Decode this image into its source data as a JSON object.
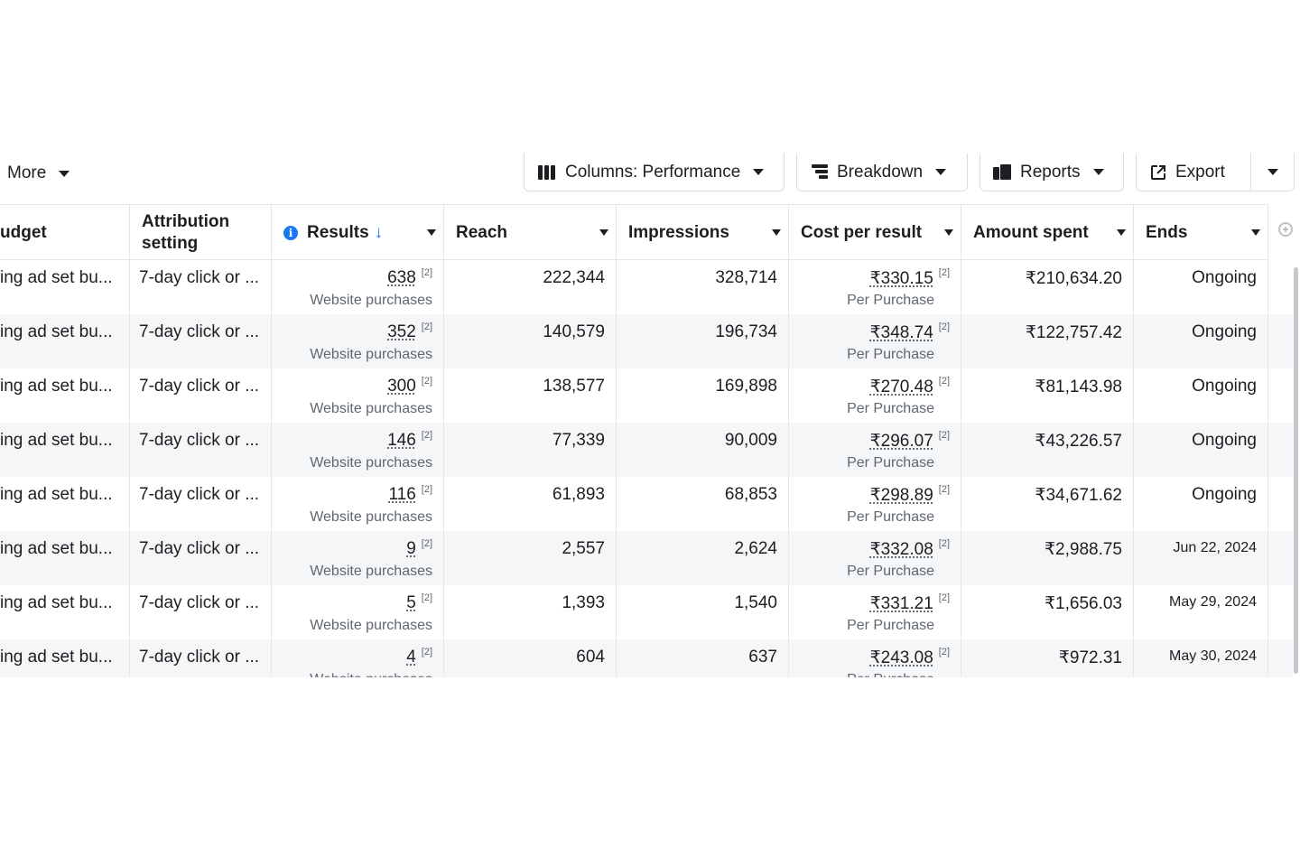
{
  "toolbar": {
    "more_label": "More",
    "columns_label": "Columns: Performance",
    "breakdown_label": "Breakdown",
    "reports_label": "Reports",
    "export_label": "Export"
  },
  "table": {
    "headers": {
      "budget": "udget",
      "attribution": "Attribution setting",
      "results": "Results",
      "reach": "Reach",
      "impressions": "Impressions",
      "cost_per_result": "Cost per result",
      "amount_spent": "Amount spent",
      "ends": "Ends"
    },
    "results_sub": "Website purchases",
    "cost_sub": "Per Purchase",
    "footnote_mark": "[2]",
    "rows": [
      {
        "budget": "ing ad set bu...",
        "attribution": "7-day click or ...",
        "results": "638",
        "reach": "222,344",
        "impressions": "328,714",
        "cost": "₹330.15",
        "spent": "₹210,634.20",
        "ends": "Ongoing"
      },
      {
        "budget": "ing ad set bu...",
        "attribution": "7-day click or ...",
        "results": "352",
        "reach": "140,579",
        "impressions": "196,734",
        "cost": "₹348.74",
        "spent": "₹122,757.42",
        "ends": "Ongoing"
      },
      {
        "budget": "ing ad set bu...",
        "attribution": "7-day click or ...",
        "results": "300",
        "reach": "138,577",
        "impressions": "169,898",
        "cost": "₹270.48",
        "spent": "₹81,143.98",
        "ends": "Ongoing"
      },
      {
        "budget": "ing ad set bu...",
        "attribution": "7-day click or ...",
        "results": "146",
        "reach": "77,339",
        "impressions": "90,009",
        "cost": "₹296.07",
        "spent": "₹43,226.57",
        "ends": "Ongoing"
      },
      {
        "budget": "ing ad set bu...",
        "attribution": "7-day click or ...",
        "results": "116",
        "reach": "61,893",
        "impressions": "68,853",
        "cost": "₹298.89",
        "spent": "₹34,671.62",
        "ends": "Ongoing"
      },
      {
        "budget": "ing ad set bu...",
        "attribution": "7-day click or ...",
        "results": "9",
        "reach": "2,557",
        "impressions": "2,624",
        "cost": "₹332.08",
        "spent": "₹2,988.75",
        "ends": "Jun 22, 2024"
      },
      {
        "budget": "ing ad set bu...",
        "attribution": "7-day click or ...",
        "results": "5",
        "reach": "1,393",
        "impressions": "1,540",
        "cost": "₹331.21",
        "spent": "₹1,656.03",
        "ends": "May 29, 2024"
      },
      {
        "budget": "ing ad set bu...",
        "attribution": "7-day click or ...",
        "results": "4",
        "reach": "604",
        "impressions": "637",
        "cost": "₹243.08",
        "spent": "₹972.31",
        "ends": "May 30, 2024"
      }
    ]
  },
  "colors": {
    "accent": "#1877f2",
    "border": "#e4e6eb",
    "muted": "#606770",
    "row_alt": "#f5f6f7"
  }
}
